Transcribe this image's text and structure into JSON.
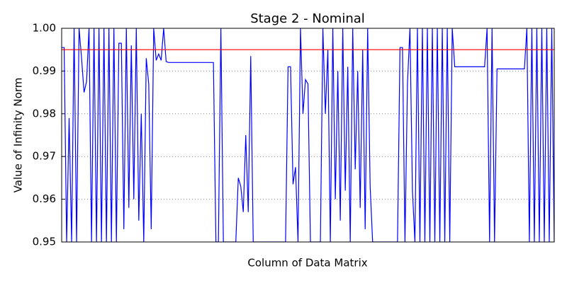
{
  "chart_data": {
    "type": "line",
    "title": "Stage 2 - Nominal",
    "x_label": "Column of Data Matrix",
    "y_label": "Value of Infinity Norm",
    "color": "#0000ff",
    "threshold": 0.995,
    "threshold_color": "#ff0000",
    "grid": true,
    "ylim": [
      0.95,
      1.0
    ],
    "yticks": [
      0.95,
      0.96,
      0.97,
      0.98,
      0.99,
      {
        "value": 1.0,
        "label": "1.00"
      }
    ],
    "values": [
      0.9955,
      0.9955,
      0.95,
      0.979,
      0.95,
      1.0,
      0.95,
      1.0,
      0.993,
      0.985,
      0.9875,
      1.0,
      0.95,
      1.0,
      0.95,
      1.0,
      0.95,
      1.0,
      0.95,
      1.0,
      0.95,
      1.0,
      0.95,
      0.9965,
      0.9965,
      0.953,
      1.0,
      0.958,
      0.996,
      0.96,
      1.0,
      0.955,
      0.98,
      0.95,
      0.993,
      0.987,
      0.953,
      1.0,
      0.9925,
      0.994,
      0.9925,
      1.0,
      0.9922,
      0.992,
      0.992,
      0.992,
      0.992,
      0.992,
      0.992,
      0.992,
      0.992,
      0.992,
      0.992,
      0.992,
      0.992,
      0.992,
      0.992,
      0.992,
      0.992,
      0.992,
      0.992,
      0.992,
      0.95,
      0.95,
      1.0,
      0.95,
      0.95,
      0.95,
      0.95,
      0.95,
      0.95,
      0.965,
      0.963,
      0.957,
      0.975,
      0.957,
      0.9935,
      0.95,
      0.95,
      0.95,
      0.95,
      0.95,
      0.95,
      0.95,
      0.95,
      0.95,
      0.95,
      0.95,
      0.95,
      0.95,
      0.95,
      0.991,
      0.991,
      0.9635,
      0.9675,
      0.95,
      1.0,
      0.98,
      0.988,
      0.987,
      0.95,
      0.95,
      0.95,
      0.95,
      0.95,
      1.0,
      0.98,
      0.995,
      0.95,
      1.0,
      0.96,
      0.99,
      0.955,
      1.0,
      0.962,
      0.991,
      0.95,
      1.0,
      0.967,
      0.99,
      0.958,
      0.995,
      0.953,
      1.0,
      0.963,
      0.95,
      0.95,
      0.95,
      0.95,
      0.95,
      0.95,
      0.95,
      0.95,
      0.95,
      0.95,
      0.95,
      0.9955,
      0.9955,
      0.95,
      0.987,
      1.0,
      0.962,
      0.95,
      1.0,
      0.95,
      1.0,
      0.95,
      1.0,
      0.95,
      1.0,
      0.95,
      1.0,
      0.95,
      1.0,
      0.95,
      1.0,
      0.95,
      1.0,
      0.991,
      0.991,
      0.991,
      0.991,
      0.991,
      0.991,
      0.991,
      0.991,
      0.991,
      0.991,
      0.991,
      0.991,
      0.991,
      1.0,
      0.95,
      1.0,
      0.95,
      0.9905,
      0.9905,
      0.9905,
      0.9905,
      0.9905,
      0.9905,
      0.9905,
      0.9905,
      0.9905,
      0.9905,
      0.9905,
      0.9905,
      1.0,
      0.95,
      1.0,
      0.95,
      1.0,
      0.95,
      1.0,
      0.95,
      1.0,
      0.95,
      1.0,
      0.95
    ]
  }
}
